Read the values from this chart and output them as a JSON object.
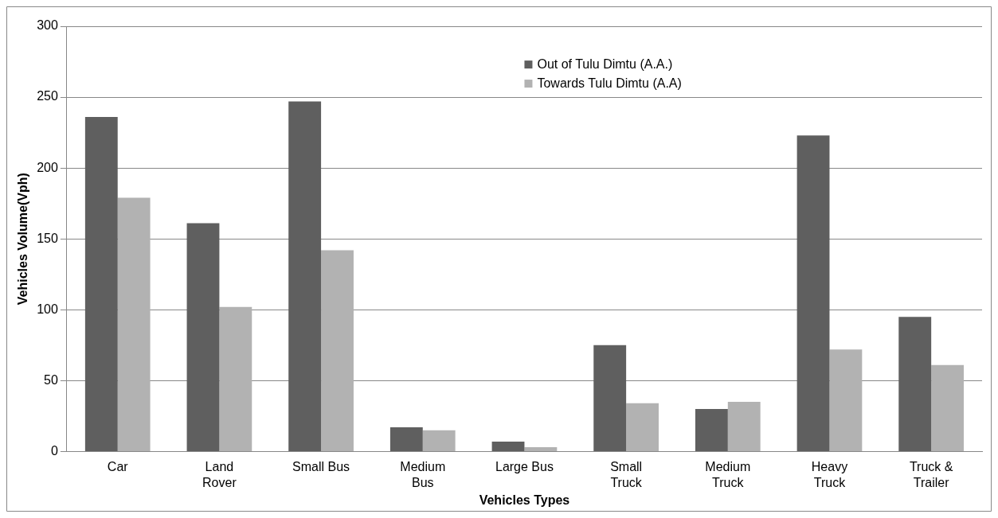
{
  "chart_data": {
    "type": "bar",
    "xlabel": "Vehicles Types",
    "ylabel": "Vehicles Volume(Vph)",
    "categories": [
      "Car",
      "Land Rover",
      "Small Bus",
      "Medium Bus",
      "Large Bus",
      "Small Truck",
      "Medium Truck",
      "Heavy Truck",
      "Truck & Trailer"
    ],
    "series": [
      {
        "name": "Out of Tulu Dimtu (A.A.)",
        "color": "#5f5f5f",
        "values": [
          236,
          161,
          247,
          17,
          7,
          75,
          30,
          223,
          95
        ]
      },
      {
        "name": "Towards Tulu Dimtu (A.A)",
        "color": "#b2b2b2",
        "values": [
          179,
          102,
          142,
          15,
          3,
          34,
          35,
          72,
          61
        ]
      }
    ],
    "ylim": [
      0,
      300
    ],
    "yticks": [
      0,
      50,
      100,
      150,
      200,
      250,
      300
    ],
    "grid": "y",
    "legend": "top right"
  }
}
